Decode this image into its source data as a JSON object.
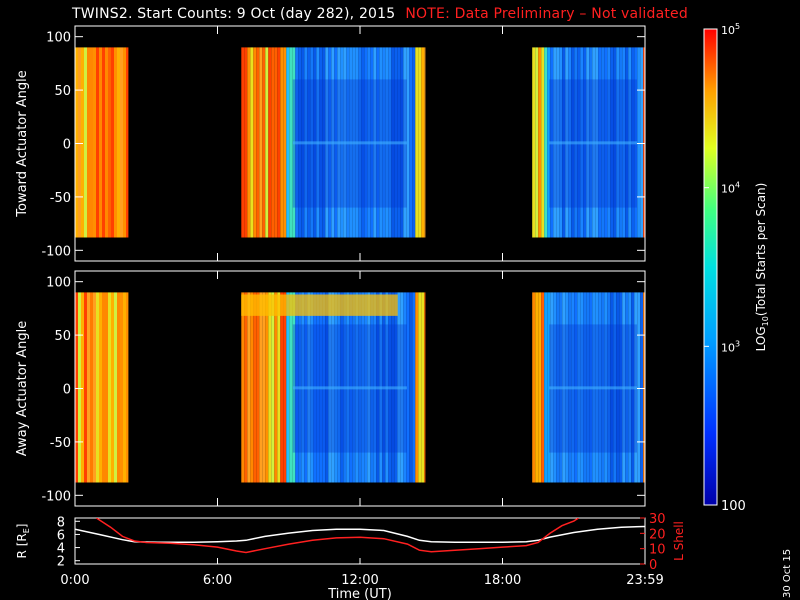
{
  "title": "TWINS2. Start Counts:  9 Oct (day 282), 2015",
  "note": "NOTE: Data Preliminary – Not validated",
  "date_stamp": "30 Oct 15",
  "colors": {
    "background": "#000000",
    "frame": "#ffffff",
    "note": "#ff2020",
    "lshell": "#ff2020",
    "r_line": "#ffffff"
  },
  "chart_data": [
    {
      "type": "heatmap",
      "panel": "toward",
      "ylabel": "Toward Actuator Angle",
      "ylim": [
        -110,
        110
      ],
      "yticks": [
        100,
        50,
        0,
        -50,
        -100
      ],
      "xlim": [
        0,
        24
      ],
      "angle_range": [
        -88,
        90
      ],
      "data_blocks": [
        {
          "start_hr": 0.0,
          "end_hr": 2.25,
          "level": "high"
        },
        {
          "start_hr": 7.0,
          "end_hr": 14.75,
          "level": "mixed"
        },
        {
          "start_hr": 19.25,
          "end_hr": 24.0,
          "level": "low"
        }
      ]
    },
    {
      "type": "heatmap",
      "panel": "away",
      "ylabel": "Away Actuator Angle",
      "ylim": [
        -110,
        110
      ],
      "yticks": [
        100,
        50,
        0,
        -50,
        -100
      ],
      "xlim": [
        0,
        24
      ],
      "angle_range": [
        -88,
        90
      ],
      "data_blocks": [
        {
          "start_hr": 0.0,
          "end_hr": 2.25,
          "level": "high"
        },
        {
          "start_hr": 7.0,
          "end_hr": 14.75,
          "level": "mixed"
        },
        {
          "start_hr": 19.25,
          "end_hr": 24.0,
          "level": "low"
        }
      ]
    },
    {
      "type": "line",
      "panel": "orbit",
      "xlabel": "Time (UT)",
      "xlim": [
        0,
        24
      ],
      "xticks": [
        0,
        6,
        12,
        18,
        24
      ],
      "xticklabels": [
        "0:00",
        "6:00",
        "12:00",
        "18:00",
        "23:59"
      ],
      "ylabel_left": "R [R",
      "ylabel_left_sub": "E",
      "ylabel_left_end": "]",
      "ylim_left": [
        1.5,
        8.5
      ],
      "yticks_left": [
        2,
        4,
        6,
        8
      ],
      "ylabel_right": "L Shell",
      "ylim_right": [
        0,
        30
      ],
      "yticks_right": [
        0,
        10,
        20,
        30
      ],
      "series": [
        {
          "name": "R",
          "axis": "left",
          "x": [
            0,
            1,
            2,
            2.5,
            3.5,
            5,
            6,
            6.8,
            7.2,
            8,
            9,
            10,
            11,
            12,
            13,
            14,
            14.5,
            15,
            16,
            17,
            18,
            19,
            19.5,
            20,
            21,
            22,
            23,
            24
          ],
          "y": [
            6.8,
            6.0,
            5.2,
            4.9,
            4.8,
            4.8,
            4.9,
            5.0,
            5.1,
            5.7,
            6.2,
            6.6,
            6.8,
            6.8,
            6.6,
            5.7,
            5.1,
            4.9,
            4.8,
            4.8,
            4.8,
            4.9,
            5.1,
            5.6,
            6.3,
            6.8,
            7.1,
            7.2
          ]
        },
        {
          "name": "L Shell",
          "axis": "right",
          "x": [
            0.9,
            1.5,
            2.0,
            2.5,
            3.0,
            4.0,
            5.0,
            6.0,
            6.8,
            7.2,
            8.0,
            9.0,
            10.0,
            11.0,
            12.0,
            13.0,
            14.0,
            14.5,
            15.0,
            16.0,
            17.0,
            18.0,
            19.0,
            19.5,
            20.0,
            20.5,
            21.0,
            21.2
          ],
          "y": [
            30,
            24,
            18,
            15,
            14,
            13.5,
            12.5,
            11,
            8.5,
            7.5,
            10,
            13,
            15.5,
            17,
            17.5,
            16.5,
            13,
            9,
            8,
            9,
            10,
            11,
            12,
            14,
            20,
            25,
            28,
            30
          ]
        }
      ]
    },
    {
      "type": "colorbar",
      "label": "LOG",
      "label_sub": "10",
      "label_end": "(Total Starts per Scan)",
      "range": [
        100,
        100000
      ],
      "scale": "log",
      "ticks": [
        {
          "value": 100,
          "base": "100",
          "exp": ""
        },
        {
          "value": 1000,
          "base": "10",
          "exp": "3"
        },
        {
          "value": 10000,
          "base": "10",
          "exp": "4"
        },
        {
          "value": 100000,
          "base": "10",
          "exp": "5"
        }
      ]
    }
  ]
}
